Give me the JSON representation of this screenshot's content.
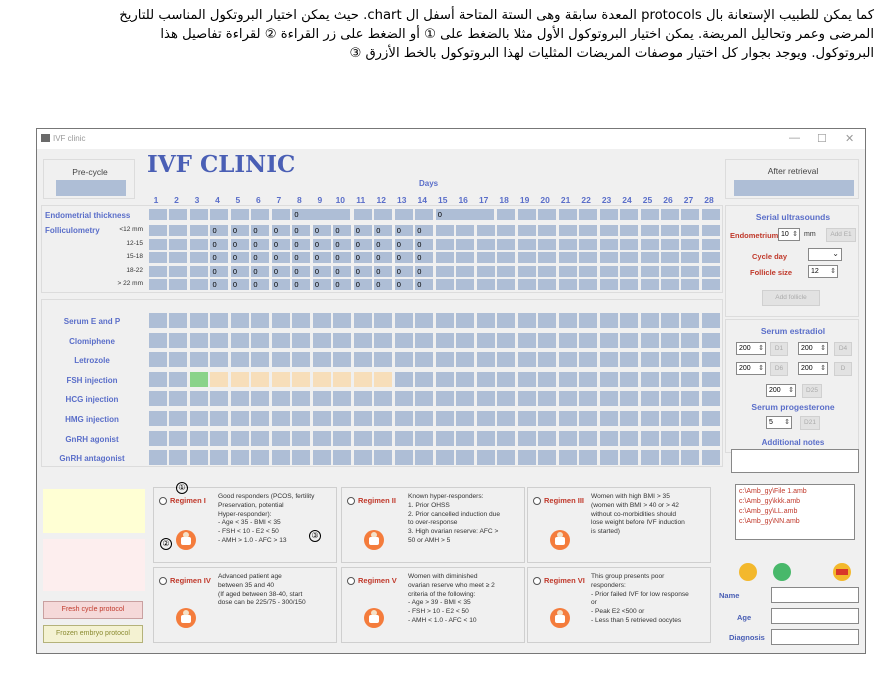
{
  "intro": {
    "line1": "كما يمكن للطبيب الإستعانة بال protocols المعدة سابقة وهى الستة المتاحة أسفل ال chart. حيث يمكن اختيار البروتكول المناسب للتاريخ",
    "line2": "المرضى وعمر وتحاليل المريضة. يمكن اختيار البروتوكول الأول مثلا بالضغط على ① أو الضغط على زر القراءة ② لقراءة تفاصيل هذا",
    "line3": "البروتوكول. ويوجد بجوار كل اختيار موصفات المريضات المثليات لهذا البروتوكول بالخط الأزرق ③"
  },
  "window": {
    "title": "IVF clinic",
    "min": "—",
    "max": "☐",
    "close": "✕"
  },
  "header": {
    "precycle": "Pre-cycle",
    "clinic_title": "IVF CLINIC",
    "days_label": "Days",
    "after_retrieval": "After retrieval"
  },
  "days": [
    "1",
    "2",
    "3",
    "4",
    "5",
    "6",
    "7",
    "8",
    "9",
    "10",
    "11",
    "12",
    "13",
    "14",
    "15",
    "16",
    "17",
    "18",
    "19",
    "20",
    "21",
    "22",
    "23",
    "24",
    "25",
    "26",
    "27",
    "28"
  ],
  "ultrasound": {
    "endometrial_label": "Endometrial thickness",
    "endometrial_values": {
      "8": "0",
      "15": "0"
    },
    "folliculometry_label": "Folliculometry",
    "rows": [
      "<12 mm",
      "12-15",
      "15-18",
      "18-22",
      "> 22 mm"
    ],
    "cell_value": "0"
  },
  "protocol_rows": [
    "Serum E and P",
    "Clomiphene",
    "Letrozole",
    "FSH injection",
    "HCG injection",
    "HMG injection",
    "GnRH agonist",
    "GnRH antagonist"
  ],
  "serial_us": {
    "title": "Serial ultrasounds",
    "endometrium_label": "Endometrium",
    "endometrium_value": "10",
    "mm": "mm",
    "add_e1": "Add E1",
    "cycle_day_label": "Cycle day",
    "follicle_size_label": "Follicle size",
    "follicle_size_value": "12",
    "add_follicle": "Add follicle"
  },
  "serum_e2": {
    "title": "Serum estradiol",
    "rows": [
      {
        "v1": "200",
        "b1": "D1",
        "v2": "200",
        "b2": "D4"
      },
      {
        "v1": "200",
        "b1": "D6",
        "v2": "200",
        "b2": "D"
      }
    ],
    "v3": "200",
    "b3": "D25"
  },
  "serum_prog": {
    "title": "Serum progesterone",
    "value": "5",
    "btn": "D21"
  },
  "notes": {
    "title": "Additional notes"
  },
  "files": [
    "c:\\Amb_gy\\File 1.amb",
    "c:\\Amb_gy\\kkk.amb",
    "c:\\Amb_gy\\LL.amb",
    "c:\\Amb_gy\\NN.amb"
  ],
  "patient": {
    "name": "Name",
    "age": "Age",
    "diagnosis": "Diagnosis"
  },
  "left_buttons": {
    "fresh": "Fresh cycle protocol",
    "frozen": "Frozen embryo protocol"
  },
  "markers": {
    "m1": "①",
    "m2": "②",
    "m3": "③"
  },
  "regimens": [
    {
      "name": "Regimen I",
      "desc": [
        "Good responders (PCOS, fertility",
        "Preservation, potential",
        "Hyper-responder):",
        "- Age < 35   - BMI < 35",
        "- FSH < 10    - E2 < 50",
        "- AMH > 1.0   - AFC > 13"
      ]
    },
    {
      "name": "Regimen II",
      "desc": [
        "Known hyper-responders:",
        "1. Prior OHSS",
        "2. Prior cancelled induction due",
        "to over-response",
        "3. High ovarian reserve: AFC >",
        "50 or AMH > 5"
      ]
    },
    {
      "name": "Regimen III",
      "desc": [
        "Women with high BMI > 35",
        "(women with BMI > 40 or > 42",
        "without co-morbidities should",
        "lose weight before IVF induction",
        "is started)"
      ]
    },
    {
      "name": "Regimen IV",
      "desc": [
        "Advanced patient age",
        "between 35 and 40",
        "(If aged between 38-40, start",
        "dose can be 225/75 - 300/150"
      ]
    },
    {
      "name": "Regimen V",
      "desc": [
        "Women with diminished",
        "ovarian reserve who meet ≥ 2",
        "criteria of the following:",
        "- Age > 39   - BMI < 35",
        "- FSH > 10 - E2 < 50",
        "- AMH < 1.0  - AFC < 10"
      ]
    },
    {
      "name": "Regimen VI",
      "desc": [
        "This group presents poor",
        "responders:",
        "- Prior failed IVF for low response",
        "or",
        "- Peak E2 <500 or",
        "- Less than 5 retrieved oocytes"
      ]
    }
  ],
  "colors": {
    "accent": "#5a6ec9",
    "cell": "#aebed6",
    "green": "#8ad38a",
    "orange": "#f7deba",
    "regimen": "#c0392b"
  }
}
